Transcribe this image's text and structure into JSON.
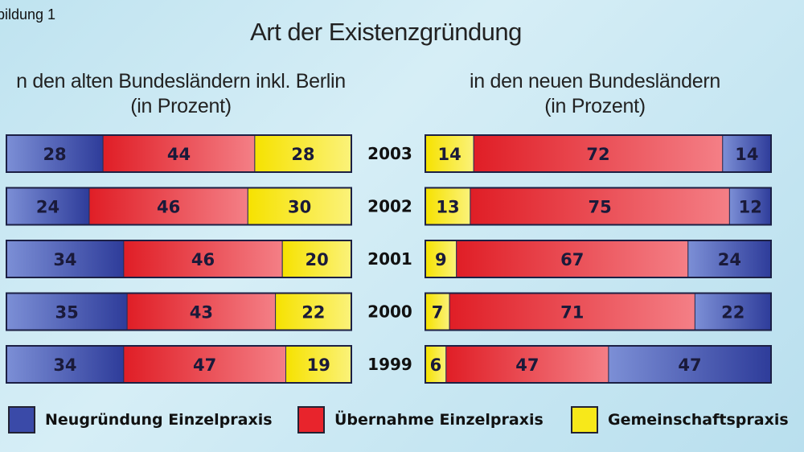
{
  "caption": "bildung 1",
  "chart_data": {
    "type": "bar",
    "stacked": true,
    "orientation": "horizontal",
    "title": "Art der Existenzgründung",
    "categories": [
      "2003",
      "2002",
      "2001",
      "2000",
      "1999"
    ],
    "panels": [
      {
        "title_line1": "n den alten Bundesländern inkl. Berlin",
        "title_line2": "(in Prozent)",
        "segment_order": [
          "neugruendung",
          "uebernahme",
          "gemeinschaft"
        ],
        "series": [
          {
            "key": "neugruendung",
            "values": [
              28,
              24,
              34,
              35,
              34
            ]
          },
          {
            "key": "uebernahme",
            "values": [
              44,
              46,
              46,
              43,
              47
            ]
          },
          {
            "key": "gemeinschaft",
            "values": [
              28,
              30,
              20,
              22,
              19
            ]
          }
        ]
      },
      {
        "title_line1": "in den neuen Bundesländern",
        "title_line2": "(in Prozent)",
        "segment_order": [
          "gemeinschaft",
          "uebernahme",
          "neugruendung"
        ],
        "series": [
          {
            "key": "gemeinschaft",
            "values": [
              14,
              13,
              9,
              7,
              6
            ]
          },
          {
            "key": "uebernahme",
            "values": [
              72,
              75,
              67,
              71,
              47
            ]
          },
          {
            "key": "neugruendung",
            "values": [
              14,
              12,
              24,
              22,
              47
            ]
          }
        ]
      }
    ],
    "legend": [
      {
        "key": "neugruendung",
        "label": "Neugründung Einzelpraxis",
        "color": "#3a4aa8"
      },
      {
        "key": "uebernahme",
        "label": "Übernahme Einzelpraxis",
        "color": "#e8242c"
      },
      {
        "key": "gemeinschaft",
        "label": "Gemeinschaftspraxis",
        "color": "#f7e81a"
      }
    ],
    "legend_position": "bottom"
  }
}
